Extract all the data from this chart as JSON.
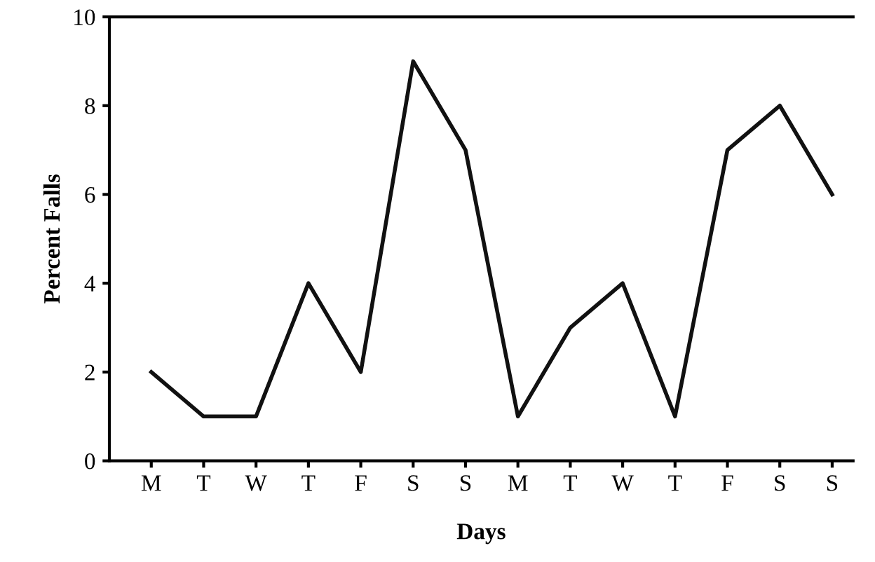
{
  "chart_data": {
    "type": "line",
    "xlabel": "Days",
    "ylabel": "Percent Falls",
    "categories": [
      "M",
      "T",
      "W",
      "T",
      "F",
      "S",
      "S",
      "M",
      "T",
      "W",
      "T",
      "F",
      "S",
      "S"
    ],
    "series": [
      {
        "color": "#111111",
        "values": [
          2,
          1,
          1,
          4,
          2,
          9,
          7,
          1,
          3,
          4,
          1,
          7,
          8,
          6
        ]
      }
    ],
    "ylim": [
      0,
      10
    ],
    "yticks": [
      0,
      2,
      4,
      6,
      8,
      10
    ],
    "grid": false,
    "legend": false,
    "marker": "none",
    "line_style": "solid"
  }
}
